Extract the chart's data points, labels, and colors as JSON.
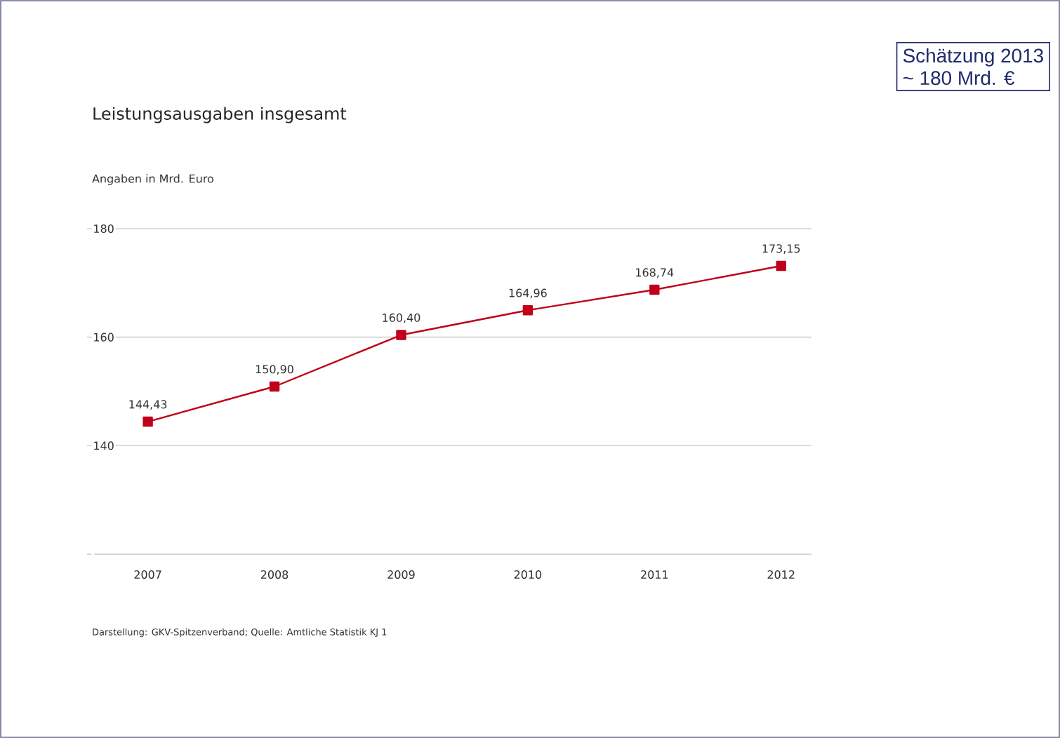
{
  "chart_data": {
    "type": "line",
    "title": "Leistungsausgaben insgesamt",
    "ylabel": "Angaben in Mrd. Euro",
    "categories": [
      "2007",
      "2008",
      "2009",
      "2010",
      "2011",
      "2012"
    ],
    "series": [
      {
        "color": "#c0001a",
        "values": [
          144.43,
          150.9,
          160.4,
          164.96,
          168.74,
          173.15
        ],
        "value_labels": [
          "144,43",
          "150,90",
          "160,40",
          "164,96",
          "168,74",
          "173,15"
        ]
      }
    ],
    "ylim": [
      120,
      180
    ],
    "yticks": [
      {
        "value": 120,
        "label": null
      },
      140,
      160,
      180
    ],
    "grid": "y",
    "marker": "square",
    "line_style": "solid",
    "annotations": [
      "Schätzung 2013",
      "~ 180 Mrd. €",
      "Darstellung: GKV-Spitzenverband; Quelle: Amtliche Statistik KJ 1"
    ]
  }
}
